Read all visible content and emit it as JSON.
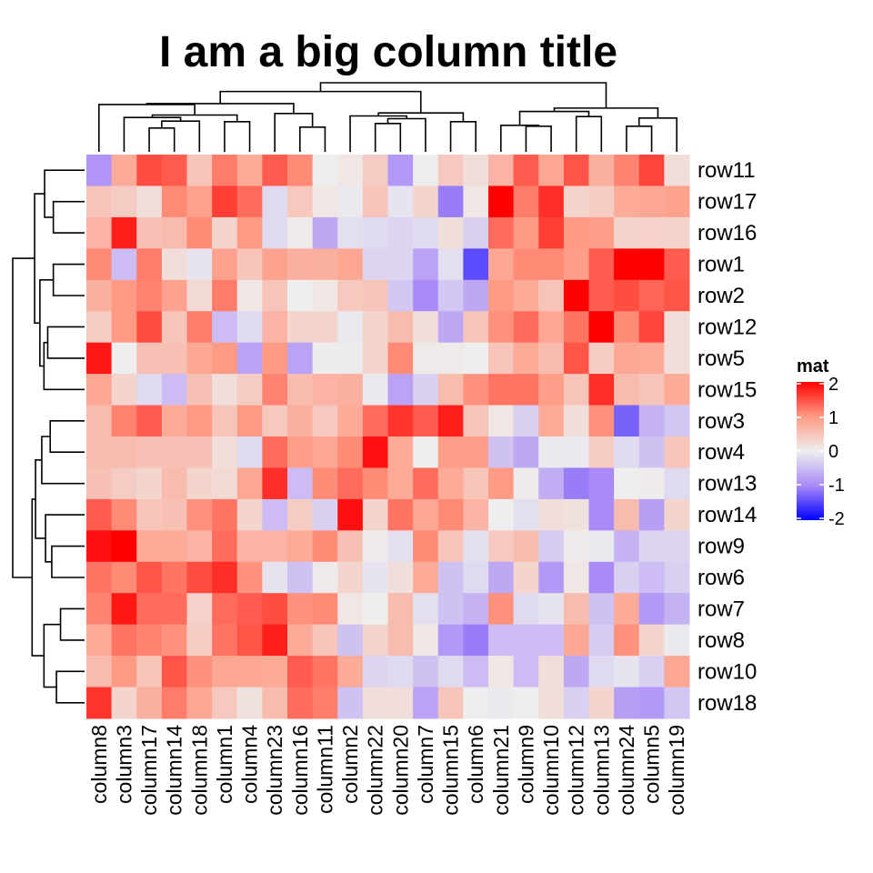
{
  "chart_data": {
    "type": "heatmap",
    "title": "I am a big column title",
    "columns": [
      "column8",
      "column3",
      "column17",
      "column14",
      "column18",
      "column1",
      "column4",
      "column23",
      "column16",
      "column11",
      "column2",
      "column22",
      "column20",
      "column7",
      "column15",
      "column6",
      "column21",
      "column9",
      "column10",
      "column12",
      "column13",
      "column24",
      "column5",
      "column19"
    ],
    "rows": [
      "row11",
      "row17",
      "row16",
      "row1",
      "row2",
      "row12",
      "row5",
      "row15",
      "row3",
      "row4",
      "row13",
      "row14",
      "row9",
      "row6",
      "row7",
      "row8",
      "row10",
      "row18"
    ],
    "values": [
      [
        -0.9,
        0.8,
        1.5,
        1.4,
        0.5,
        1.2,
        0.8,
        1.4,
        1.1,
        0,
        0.1,
        0.4,
        -0.85,
        0.02,
        0.45,
        0.2,
        0.7,
        1.4,
        0.85,
        1.45,
        0.75,
        1.15,
        1.55,
        0.2
      ],
      [
        0.5,
        0.4,
        0.2,
        1.1,
        0.9,
        1.6,
        1.3,
        -0.2,
        0.45,
        0.1,
        -0.05,
        0.5,
        -0.1,
        0.3,
        -1.1,
        0.1,
        2.0,
        1.2,
        1.7,
        0.3,
        0.4,
        0.8,
        0.85,
        0.9
      ],
      [
        0.7,
        1.8,
        0.55,
        0.6,
        1.1,
        0.3,
        1.0,
        -0.2,
        0.03,
        -0.7,
        -0.15,
        -0.2,
        -0.25,
        -0.2,
        0.2,
        -0.3,
        1.3,
        1.0,
        1.6,
        1.0,
        0.95,
        0.3,
        0.35,
        0.3
      ],
      [
        1.1,
        -0.5,
        1.2,
        0.2,
        -0.1,
        0.9,
        0.5,
        0.9,
        0.75,
        0.75,
        0.85,
        -0.25,
        -0.25,
        -0.75,
        -0.15,
        -1.45,
        0.85,
        1.1,
        1.1,
        0.95,
        1.4,
        2.0,
        2.0,
        1.4
      ],
      [
        0.75,
        1.0,
        1.15,
        0.9,
        0.25,
        1.2,
        0.1,
        0.5,
        0,
        0.1,
        0.45,
        0.5,
        -0.4,
        -1.0,
        -0.4,
        -0.7,
        1.0,
        0.8,
        0.5,
        2.0,
        1.4,
        1.5,
        1.35,
        1.45
      ],
      [
        0.4,
        1.0,
        1.5,
        0.5,
        1.2,
        -0.5,
        -0.2,
        0.7,
        0.3,
        0.3,
        -0.05,
        0.3,
        0.6,
        0.2,
        -0.7,
        0.5,
        1.05,
        1.3,
        0.85,
        1.25,
        2.0,
        1.1,
        1.55,
        0.2
      ],
      [
        1.85,
        0,
        0.55,
        0.55,
        0.85,
        1.0,
        -0.75,
        1.0,
        -0.75,
        -0.03,
        -0.03,
        0.3,
        1.1,
        0.05,
        0.05,
        0,
        0.5,
        0.8,
        0.6,
        1.45,
        0.4,
        0.85,
        0.8,
        0.2
      ],
      [
        0.85,
        0.3,
        -0.2,
        -0.5,
        0.55,
        0.2,
        0.4,
        1.15,
        0.6,
        0.7,
        0.75,
        -0.05,
        -0.75,
        -0.3,
        0.6,
        1.05,
        1.25,
        1.25,
        0.95,
        0.5,
        1.7,
        0.6,
        0.5,
        0.8
      ],
      [
        0.6,
        1.15,
        1.4,
        0.8,
        1.0,
        0.5,
        1.0,
        0.45,
        0.75,
        0.45,
        0.8,
        1.3,
        1.65,
        1.4,
        1.8,
        0.5,
        0.1,
        -0.3,
        0.8,
        0.2,
        1.05,
        -1.3,
        -0.6,
        -0.4
      ],
      [
        0.6,
        0.6,
        0.55,
        0.55,
        0.55,
        0.2,
        -0.2,
        1.3,
        0.95,
        0.85,
        1.1,
        1.9,
        0.8,
        0,
        0.95,
        0.95,
        -0.45,
        -0.7,
        -0.05,
        -0.05,
        0.4,
        -0.2,
        -0.45,
        0.5
      ],
      [
        0.55,
        0.4,
        0.3,
        0.6,
        0.3,
        0.25,
        0.85,
        1.7,
        -0.5,
        1.1,
        1.3,
        1.1,
        0.8,
        1.3,
        0.8,
        0.5,
        1.0,
        0.03,
        -0.65,
        -1.1,
        -1.0,
        0,
        0.03,
        -0.2
      ],
      [
        1.4,
        1.1,
        0.5,
        0.55,
        1.05,
        1.25,
        0.3,
        -0.5,
        0.4,
        -0.3,
        1.9,
        0.3,
        1.25,
        0.85,
        1.1,
        0.7,
        0,
        -0.15,
        0.2,
        0.15,
        -1.0,
        0.6,
        -0.8,
        0.3
      ],
      [
        1.9,
        2.0,
        0.8,
        0.8,
        0.7,
        1.3,
        0.7,
        0.7,
        0.8,
        1.1,
        0.55,
        0.05,
        -0.15,
        1.1,
        0.5,
        -0.15,
        0.45,
        0.6,
        -0.35,
        0.03,
        -0.05,
        -0.6,
        -0.25,
        -0.25
      ],
      [
        1.25,
        1.1,
        1.45,
        1.25,
        1.5,
        1.7,
        1.05,
        -0.1,
        -0.45,
        0.05,
        0.3,
        -0.1,
        0.2,
        0.8,
        -0.45,
        -0.2,
        -0.7,
        0.3,
        -0.85,
        0.1,
        -1.0,
        -0.3,
        -0.5,
        -0.3
      ],
      [
        1.15,
        1.85,
        1.3,
        1.3,
        0.35,
        1.3,
        1.4,
        1.5,
        1.05,
        1.1,
        0.1,
        0,
        0.6,
        -0.15,
        -0.45,
        -0.6,
        1.05,
        -0.2,
        -0.1,
        0.6,
        -0.45,
        0.8,
        -0.85,
        -0.6
      ],
      [
        0.8,
        1.25,
        1.15,
        1.05,
        0.4,
        1.25,
        1.45,
        1.8,
        0.8,
        0.5,
        -0.45,
        0.3,
        0.6,
        0.1,
        -0.85,
        -1.1,
        -0.5,
        -0.5,
        -0.5,
        0.85,
        -0.35,
        1.05,
        0.3,
        -0.05
      ],
      [
        0.6,
        1.0,
        0.5,
        1.45,
        1.05,
        0.85,
        0.85,
        0.8,
        1.4,
        1.25,
        0.8,
        -0.25,
        -0.2,
        -0.45,
        -0.2,
        -0.5,
        0.1,
        -0.5,
        0.2,
        -0.7,
        -0.2,
        -0.1,
        -0.3,
        0.85
      ],
      [
        1.65,
        0.3,
        0.75,
        1.2,
        0.85,
        0.45,
        0.15,
        0.6,
        1.3,
        1.2,
        -0.45,
        0.2,
        0.2,
        -0.75,
        0.5,
        0,
        -0.05,
        0,
        0.2,
        -0.3,
        0.3,
        -0.8,
        -0.85,
        -0.4
      ]
    ],
    "color_scale": {
      "min": -2,
      "mid": 0,
      "max": 2,
      "low_color": "#0000FF",
      "mid_color": "#EEEEEE",
      "high_color": "#FF0000"
    },
    "legend": {
      "title": "mat",
      "ticks": [
        "2",
        "1",
        "0",
        "-1",
        "-2"
      ],
      "placement": "right"
    },
    "row_dendrogram": true,
    "column_dendrogram": true
  }
}
